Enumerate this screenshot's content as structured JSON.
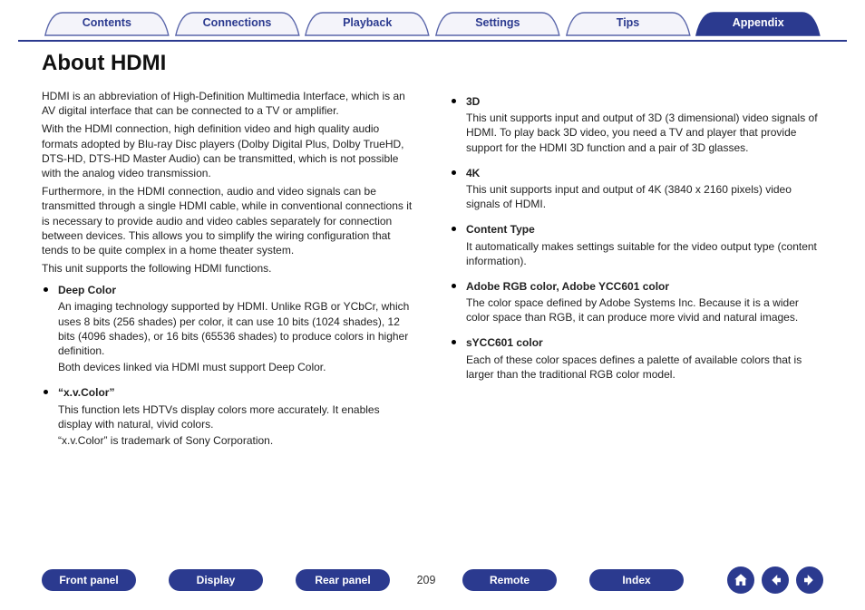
{
  "colors": {
    "brand": "#2b3a8f",
    "tab_bg": "#f4f4fa",
    "tab_border": "#5a66aa",
    "text": "#222222",
    "white": "#ffffff"
  },
  "tabs": [
    {
      "label": "Contents",
      "active": false
    },
    {
      "label": "Connections",
      "active": false
    },
    {
      "label": "Playback",
      "active": false
    },
    {
      "label": "Settings",
      "active": false
    },
    {
      "label": "Tips",
      "active": false
    },
    {
      "label": "Appendix",
      "active": true
    }
  ],
  "title": "About HDMI",
  "left": {
    "paras": [
      "HDMI is an abbreviation of High-Definition Multimedia Interface, which is an AV digital interface that can be connected to a TV or amplifier.",
      "With the HDMI connection, high definition video and high quality audio formats adopted by Blu-ray Disc players (Dolby Digital Plus, Dolby TrueHD, DTS-HD, DTS-HD Master Audio) can be transmitted, which is not possible with the analog video transmission.",
      "Furthermore, in the HDMI connection, audio and video signals can be transmitted through a single HDMI cable, while in conventional connections it is necessary to provide audio and video cables separately for connection between devices. This allows you to simplify the wiring configuration that tends to be quite complex in a home theater system.",
      "This unit supports the following HDMI functions."
    ],
    "bullets": [
      {
        "title": "Deep Color",
        "body": [
          "An imaging technology supported by HDMI. Unlike RGB or YCbCr, which uses 8 bits (256 shades) per color, it can use 10 bits (1024 shades), 12 bits (4096 shades), or 16 bits (65536 shades) to produce colors in higher definition.",
          "Both devices linked via HDMI must support Deep Color."
        ]
      },
      {
        "title": "“x.v.Color”",
        "body": [
          "This function lets HDTVs display colors more accurately. It enables display with natural, vivid colors.",
          "“x.v.Color” is trademark of Sony Corporation."
        ]
      }
    ]
  },
  "right": {
    "bullets": [
      {
        "title": "3D",
        "body": [
          "This unit supports input and output of 3D (3 dimensional) video signals of HDMI. To play back 3D video, you need a TV and player that provide support for the HDMI 3D function and a pair of 3D glasses."
        ]
      },
      {
        "title": "4K",
        "body": [
          "This unit supports input and output of 4K (3840 x 2160 pixels) video signals of HDMI."
        ]
      },
      {
        "title": "Content Type",
        "body": [
          "It automatically makes settings suitable for the video output type (content information)."
        ]
      },
      {
        "title": "Adobe RGB color, Adobe YCC601 color",
        "body": [
          "The color space defined by Adobe Systems Inc. Because it is a wider color space than RGB, it can produce more vivid and natural images."
        ]
      },
      {
        "title": "sYCC601 color",
        "body": [
          "Each of these color spaces defines a palette of available colors that is larger than the traditional RGB color model."
        ]
      }
    ]
  },
  "bottom": {
    "buttons": [
      "Front panel",
      "Display",
      "Rear panel"
    ],
    "page": "209",
    "buttons2": [
      "Remote",
      "Index"
    ]
  }
}
